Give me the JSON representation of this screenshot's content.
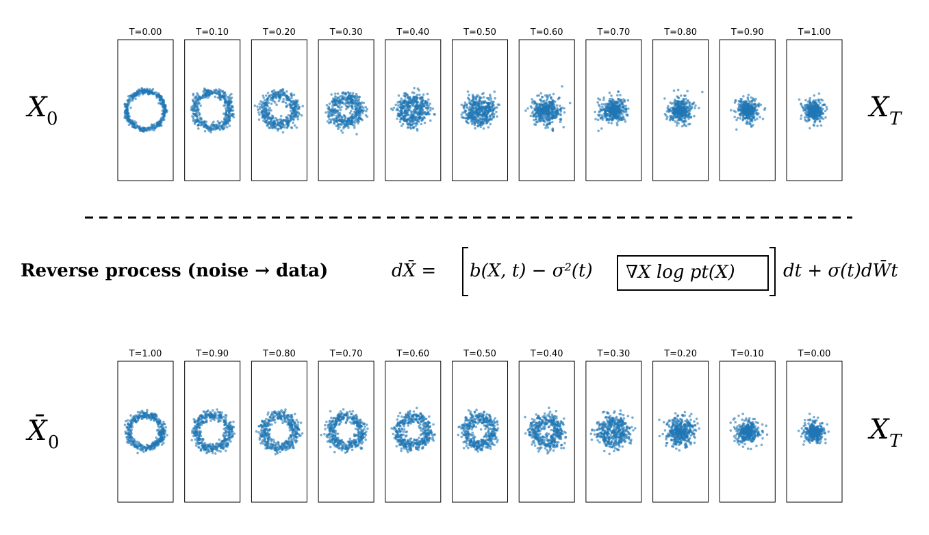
{
  "forward": {
    "start_symbol": "X",
    "start_subscript": "0",
    "end_symbol": "X",
    "end_subscript": "T",
    "panels": [
      {
        "label": "T=0.00",
        "radius": 0.82,
        "spread": 0.09
      },
      {
        "label": "T=0.10",
        "radius": 0.76,
        "spread": 0.16
      },
      {
        "label": "T=0.20",
        "radius": 0.66,
        "spread": 0.22
      },
      {
        "label": "T=0.30",
        "radius": 0.56,
        "spread": 0.26
      },
      {
        "label": "T=0.40",
        "radius": 0.48,
        "spread": 0.3
      },
      {
        "label": "T=0.50",
        "radius": 0.42,
        "spread": 0.33
      },
      {
        "label": "T=0.60",
        "radius": 0.35,
        "spread": 0.36
      },
      {
        "label": "T=0.70",
        "radius": 0.28,
        "spread": 0.38
      },
      {
        "label": "T=0.80",
        "radius": 0.22,
        "spread": 0.4
      },
      {
        "label": "T=0.90",
        "radius": 0.15,
        "spread": 0.42
      },
      {
        "label": "T=1.00",
        "radius": 0.08,
        "spread": 0.42
      }
    ]
  },
  "separator": {
    "style": "dashed"
  },
  "equation": {
    "title": "Reverse process (noise → data)",
    "lhs": "dX̄ =",
    "drift": "b(X, t) − σ²(t)",
    "score": "∇X log pt(X)",
    "diffusion": "dt + σ(t)dW̄t"
  },
  "reverse": {
    "start_symbol": "X̄",
    "start_subscript": "0",
    "end_symbol": "X",
    "end_subscript": "T",
    "panels": [
      {
        "label": "T=1.00",
        "radius": 0.72,
        "spread": 0.14
      },
      {
        "label": "T=0.90",
        "radius": 0.72,
        "spread": 0.17
      },
      {
        "label": "T=0.80",
        "radius": 0.7,
        "spread": 0.19
      },
      {
        "label": "T=0.70",
        "radius": 0.66,
        "spread": 0.2
      },
      {
        "label": "T=0.60",
        "radius": 0.64,
        "spread": 0.22
      },
      {
        "label": "T=0.50",
        "radius": 0.6,
        "spread": 0.24
      },
      {
        "label": "T=0.40",
        "radius": 0.55,
        "spread": 0.27
      },
      {
        "label": "T=0.30",
        "radius": 0.46,
        "spread": 0.32
      },
      {
        "label": "T=0.20",
        "radius": 0.34,
        "spread": 0.36
      },
      {
        "label": "T=0.10",
        "radius": 0.18,
        "spread": 0.4
      },
      {
        "label": "T=0.00",
        "radius": 0.1,
        "spread": 0.4
      }
    ]
  },
  "colors": {
    "points": "#1f77b4",
    "frame": "#000000"
  }
}
